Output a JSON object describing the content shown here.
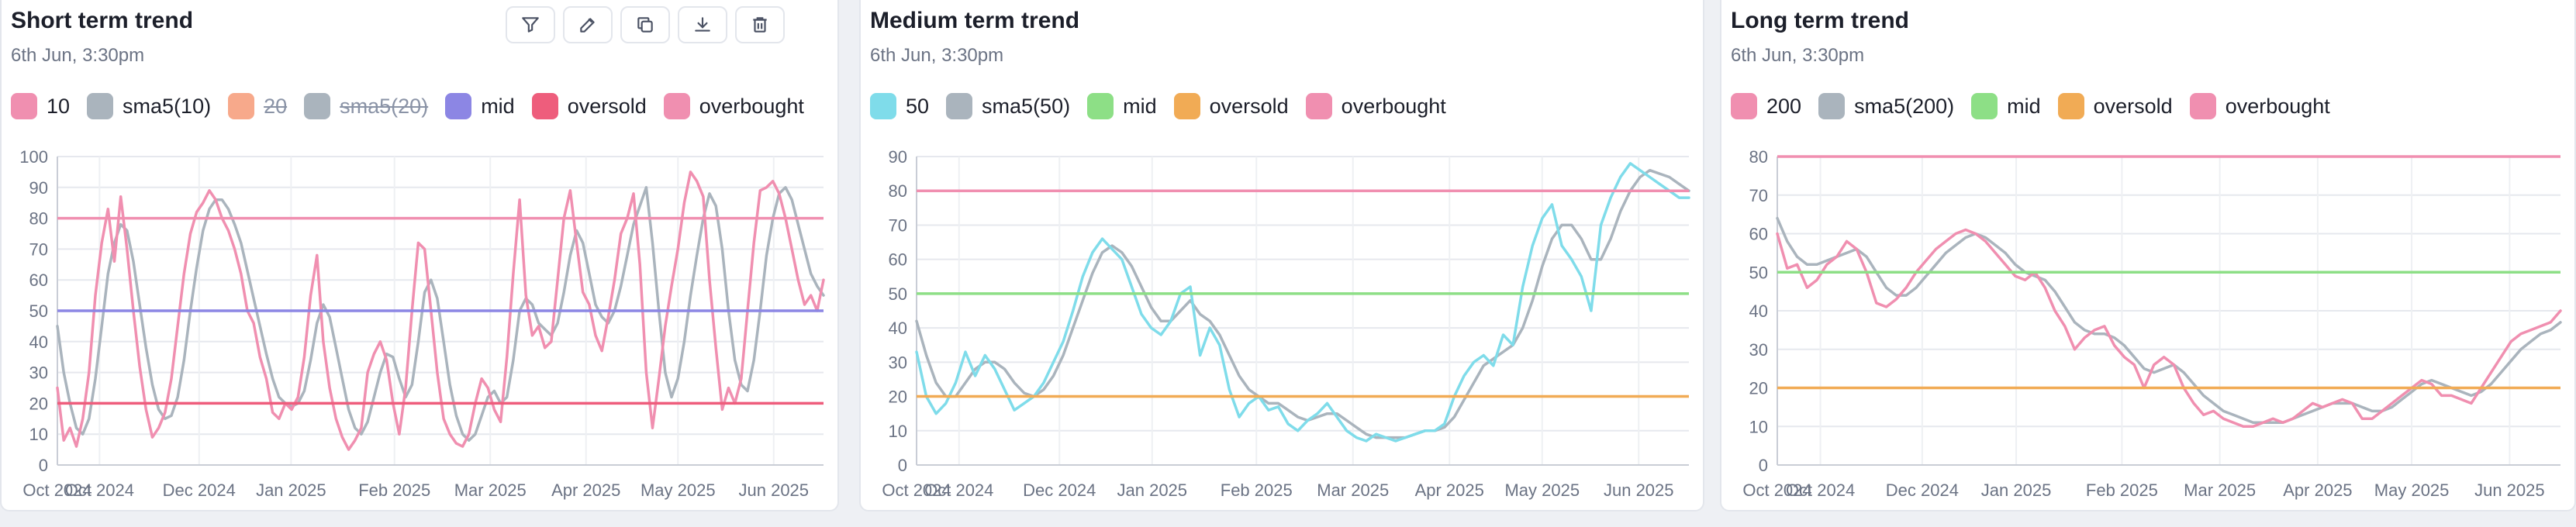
{
  "panels": [
    {
      "title": "Short term trend",
      "subtitle": "6th Jun, 3:30pm",
      "toolbar": [
        "filter-icon",
        "edit-icon",
        "copy-icon",
        "download-icon",
        "trash-icon"
      ],
      "legend": [
        {
          "label": "10",
          "color": "#f08fb0",
          "active": true
        },
        {
          "label": "sma5(10)",
          "color": "#aab4bd",
          "active": true
        },
        {
          "label": "20",
          "color": "#f7a98b",
          "active": false
        },
        {
          "label": "sma5(20)",
          "color": "#aab4bd",
          "active": false
        },
        {
          "label": "mid",
          "color": "#8c86e4",
          "active": true
        },
        {
          "label": "oversold",
          "color": "#ee5d7c",
          "active": true
        },
        {
          "label": "overbought",
          "color": "#f08fb0",
          "active": true
        }
      ]
    },
    {
      "title": "Medium term trend",
      "subtitle": "6th Jun, 3:30pm",
      "legend": [
        {
          "label": "50",
          "color": "#7fdcea",
          "active": true
        },
        {
          "label": "sma5(50)",
          "color": "#aab4bd",
          "active": true
        },
        {
          "label": "mid",
          "color": "#8ddf86",
          "active": true
        },
        {
          "label": "oversold",
          "color": "#f1ab55",
          "active": true
        },
        {
          "label": "overbought",
          "color": "#f08fb0",
          "active": true
        }
      ]
    },
    {
      "title": "Long term trend",
      "subtitle": "6th Jun, 3:30pm",
      "legend": [
        {
          "label": "200",
          "color": "#f08fb0",
          "active": true
        },
        {
          "label": "sma5(200)",
          "color": "#aab4bd",
          "active": true
        },
        {
          "label": "mid",
          "color": "#8ddf86",
          "active": true
        },
        {
          "label": "oversold",
          "color": "#f1ab55",
          "active": true
        },
        {
          "label": "overbought",
          "color": "#f08fb0",
          "active": true
        }
      ]
    }
  ],
  "chart_data": [
    {
      "type": "line",
      "title": "Short term trend",
      "x_labels": [
        "Oct 2024",
        "Oct 2024",
        "Dec 2024",
        "Jan 2025",
        "Feb 2025",
        "Mar 2025",
        "Apr 2025",
        "May 2025",
        "Jun 2025"
      ],
      "ylim": [
        0,
        100
      ],
      "yticks": [
        0,
        10,
        20,
        30,
        40,
        50,
        60,
        70,
        80,
        90,
        100
      ],
      "grid": true,
      "legend_position": "top",
      "reference_lines": [
        {
          "name": "mid",
          "value": 50,
          "color": "#8c86e4"
        },
        {
          "name": "oversold",
          "value": 20,
          "color": "#ee5d7c"
        },
        {
          "name": "overbought",
          "value": 80,
          "color": "#f08fb0"
        }
      ],
      "series": [
        {
          "name": "10",
          "color": "#f08fb0",
          "values": [
            25,
            8,
            12,
            6,
            15,
            30,
            55,
            72,
            83,
            66,
            87,
            70,
            50,
            32,
            18,
            9,
            12,
            17,
            28,
            45,
            62,
            75,
            82,
            85,
            89,
            86,
            80,
            76,
            70,
            62,
            50,
            46,
            35,
            28,
            17,
            15,
            20,
            18,
            22,
            35,
            55,
            68,
            40,
            25,
            15,
            9,
            5,
            8,
            12,
            30,
            36,
            40,
            34,
            20,
            10,
            25,
            50,
            72,
            70,
            50,
            30,
            15,
            10,
            7,
            6,
            10,
            20,
            28,
            25,
            18,
            14,
            35,
            62,
            86,
            55,
            42,
            45,
            38,
            40,
            60,
            80,
            89,
            72,
            56,
            52,
            42,
            37,
            48,
            60,
            75,
            80,
            88,
            65,
            30,
            12,
            28,
            45,
            58,
            70,
            85,
            95,
            92,
            87,
            60,
            38,
            18,
            25,
            20,
            28,
            50,
            72,
            89,
            90,
            92,
            88,
            80,
            70,
            60,
            52,
            55,
            50,
            60
          ]
        },
        {
          "name": "sma5(10)",
          "color": "#aab4bd",
          "values": [
            45,
            30,
            20,
            12,
            10,
            15,
            28,
            45,
            62,
            72,
            78,
            76,
            66,
            52,
            38,
            26,
            18,
            15,
            16,
            22,
            34,
            50,
            64,
            76,
            83,
            86,
            86,
            83,
            78,
            72,
            63,
            54,
            45,
            36,
            28,
            22,
            20,
            19,
            20,
            24,
            34,
            46,
            52,
            48,
            38,
            28,
            18,
            12,
            10,
            14,
            22,
            30,
            36,
            35,
            28,
            22,
            26,
            40,
            56,
            60,
            54,
            40,
            26,
            16,
            10,
            8,
            10,
            16,
            22,
            24,
            20,
            22,
            34,
            50,
            54,
            52,
            46,
            44,
            42,
            46,
            56,
            68,
            76,
            72,
            62,
            52,
            48,
            46,
            50,
            58,
            68,
            78,
            84,
            90,
            72,
            50,
            30,
            22,
            28,
            40,
            55,
            68,
            80,
            88,
            84,
            70,
            50,
            34,
            26,
            24,
            34,
            50,
            68,
            80,
            88,
            90,
            86,
            78,
            70,
            62,
            58,
            55
          ]
        }
      ]
    },
    {
      "type": "line",
      "title": "Medium term trend",
      "x_labels": [
        "Oct 2024",
        "Oct 2024",
        "Dec 2024",
        "Jan 2025",
        "Feb 2025",
        "Mar 2025",
        "Apr 2025",
        "May 2025",
        "Jun 2025"
      ],
      "ylim": [
        0,
        90
      ],
      "yticks": [
        0,
        10,
        20,
        30,
        40,
        50,
        60,
        70,
        80,
        90
      ],
      "grid": true,
      "legend_position": "top",
      "reference_lines": [
        {
          "name": "mid",
          "value": 50,
          "color": "#8ddf86"
        },
        {
          "name": "oversold",
          "value": 20,
          "color": "#f1ab55"
        },
        {
          "name": "overbought",
          "value": 80,
          "color": "#f08fb0"
        }
      ],
      "series": [
        {
          "name": "50",
          "color": "#7fdcea",
          "values": [
            33,
            20,
            15,
            18,
            24,
            33,
            26,
            32,
            28,
            22,
            16,
            18,
            20,
            24,
            30,
            36,
            45,
            55,
            62,
            66,
            63,
            60,
            52,
            44,
            40,
            38,
            42,
            50,
            52,
            32,
            40,
            35,
            22,
            14,
            18,
            20,
            16,
            17,
            12,
            10,
            13,
            15,
            18,
            14,
            10,
            8,
            7,
            9,
            8,
            7,
            8,
            9,
            10,
            10,
            12,
            20,
            26,
            30,
            32,
            29,
            38,
            35,
            52,
            64,
            72,
            76,
            64,
            60,
            55,
            45,
            70,
            78,
            84,
            88,
            86,
            84,
            82,
            80,
            78,
            78
          ]
        },
        {
          "name": "sma5(50)",
          "color": "#aab4bd",
          "values": [
            42,
            32,
            24,
            20,
            20,
            24,
            28,
            30,
            30,
            28,
            24,
            21,
            20,
            22,
            26,
            32,
            40,
            48,
            56,
            62,
            64,
            62,
            58,
            52,
            46,
            42,
            42,
            45,
            48,
            44,
            42,
            38,
            32,
            26,
            22,
            20,
            18,
            18,
            16,
            14,
            13,
            14,
            15,
            15,
            13,
            11,
            9,
            8,
            8,
            8,
            8,
            9,
            10,
            10,
            11,
            14,
            19,
            24,
            29,
            31,
            33,
            35,
            40,
            48,
            58,
            66,
            70,
            70,
            66,
            60,
            60,
            66,
            74,
            80,
            84,
            86,
            85,
            84,
            82,
            80
          ]
        }
      ]
    },
    {
      "type": "line",
      "title": "Long term trend",
      "x_labels": [
        "Oct 2024",
        "Oct 2024",
        "Dec 2024",
        "Jan 2025",
        "Feb 2025",
        "Mar 2025",
        "Apr 2025",
        "May 2025",
        "Jun 2025"
      ],
      "ylim": [
        0,
        80
      ],
      "yticks": [
        0,
        10,
        20,
        30,
        40,
        50,
        60,
        70,
        80
      ],
      "grid": true,
      "legend_position": "top",
      "reference_lines": [
        {
          "name": "mid",
          "value": 50,
          "color": "#8ddf86"
        },
        {
          "name": "oversold",
          "value": 20,
          "color": "#f1ab55"
        },
        {
          "name": "overbought",
          "value": 80,
          "color": "#f08fb0"
        }
      ],
      "series": [
        {
          "name": "200",
          "color": "#f08fb0",
          "values": [
            60,
            51,
            52,
            46,
            48,
            52,
            54,
            58,
            56,
            50,
            42,
            41,
            43,
            46,
            50,
            53,
            56,
            58,
            60,
            61,
            60,
            58,
            55,
            52,
            49,
            48,
            50,
            46,
            40,
            36,
            30,
            33,
            35,
            36,
            31,
            28,
            26,
            20,
            26,
            28,
            26,
            20,
            16,
            13,
            14,
            12,
            11,
            10,
            10,
            11,
            12,
            11,
            12,
            14,
            16,
            15,
            16,
            17,
            16,
            12,
            12,
            14,
            16,
            18,
            20,
            22,
            21,
            18,
            18,
            17,
            16,
            20,
            24,
            28,
            32,
            34,
            35,
            36,
            37,
            40
          ]
        },
        {
          "name": "sma5(200)",
          "color": "#aab4bd",
          "values": [
            64,
            58,
            54,
            52,
            52,
            53,
            54,
            55,
            56,
            54,
            50,
            46,
            44,
            44,
            46,
            49,
            52,
            55,
            57,
            59,
            60,
            59,
            57,
            55,
            52,
            50,
            49,
            48,
            45,
            41,
            37,
            35,
            34,
            34,
            33,
            31,
            28,
            25,
            24,
            25,
            26,
            24,
            21,
            18,
            16,
            14,
            13,
            12,
            11,
            11,
            11,
            11,
            12,
            13,
            14,
            15,
            16,
            16,
            16,
            15,
            14,
            14,
            15,
            17,
            19,
            21,
            22,
            21,
            20,
            19,
            18,
            19,
            21,
            24,
            27,
            30,
            32,
            34,
            35,
            37
          ]
        }
      ]
    }
  ]
}
